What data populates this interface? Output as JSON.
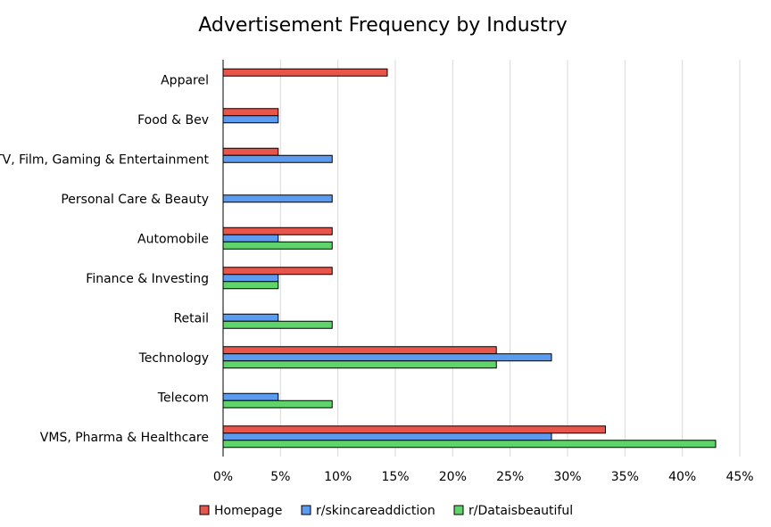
{
  "chart_data": {
    "type": "bar",
    "orientation": "horizontal",
    "title": "Advertisement Frequency by Industry",
    "xlabel": "",
    "ylabel": "",
    "xlim": [
      0,
      45
    ],
    "x_ticks": [
      "0%",
      "5%",
      "10%",
      "15%",
      "20%",
      "25%",
      "30%",
      "35%",
      "40%",
      "45%"
    ],
    "grid": "vertical",
    "legend_position": "bottom",
    "categories": [
      "Apparel",
      "Food & Bev",
      "TV, Film, Gaming & Entertainment",
      "Personal Care & Beauty",
      "Automobile",
      "Finance & Investing",
      "Retail",
      "Technology",
      "Telecom",
      "VMS, Pharma & Healthcare"
    ],
    "series": [
      {
        "name": "Homepage",
        "color": "#e8564b",
        "values": [
          14.3,
          4.8,
          4.8,
          0,
          9.5,
          9.5,
          0,
          23.8,
          0,
          33.3
        ]
      },
      {
        "name": "r/skincareaddiction",
        "color": "#5b9bf0",
        "values": [
          0,
          4.8,
          9.5,
          9.5,
          4.8,
          4.8,
          4.8,
          28.6,
          4.8,
          28.6
        ]
      },
      {
        "name": "r/Dataisbeautiful",
        "color": "#5fd46b",
        "values": [
          0,
          0,
          0,
          0,
          9.5,
          4.8,
          9.5,
          23.8,
          9.5,
          42.9
        ]
      }
    ]
  }
}
